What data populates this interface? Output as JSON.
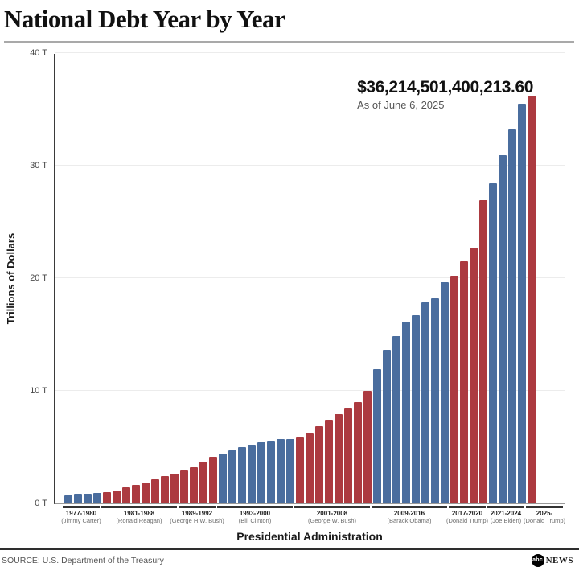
{
  "header": {
    "title": "National Debt Year by Year"
  },
  "annotation": {
    "headline": "$36,214,501,400,213.60",
    "subtext": "As of June 6, 2025"
  },
  "chart_data": {
    "type": "bar",
    "title": "National Debt Year by Year",
    "ylabel": "Trillions of Dollars",
    "xlabel": "Presidential Administration",
    "ylim": [
      0,
      40
    ],
    "yticks": [
      0,
      10,
      20,
      30,
      40
    ],
    "ytick_labels": [
      "0 T",
      "10 T",
      "20 T",
      "30 T",
      "40 T"
    ],
    "grid": true,
    "unit": "trillions of US dollars",
    "annotation": {
      "headline": "$36,214,501,400,213.60",
      "subtext": "As of June 6, 2025"
    },
    "colors": {
      "democrat": "#4a6d9e",
      "republican": "#ac3a40"
    },
    "groups": [
      {
        "term": "1977-1980",
        "president": "(Jimmy Carter)",
        "party": "democrat",
        "years": [
          1977,
          1978,
          1979,
          1980
        ],
        "values": [
          0.7,
          0.8,
          0.8,
          0.9
        ]
      },
      {
        "term": "1981-1988",
        "president": "(Ronald Reagan)",
        "party": "republican",
        "years": [
          1981,
          1982,
          1983,
          1984,
          1985,
          1986,
          1987,
          1988
        ],
        "values": [
          1.0,
          1.1,
          1.4,
          1.6,
          1.8,
          2.1,
          2.4,
          2.6
        ]
      },
      {
        "term": "1989-1992",
        "president": "(George H.W. Bush)",
        "party": "republican",
        "years": [
          1989,
          1990,
          1991,
          1992
        ],
        "values": [
          2.9,
          3.2,
          3.7,
          4.1
        ]
      },
      {
        "term": "1993-2000",
        "president": "(Bill Clinton)",
        "party": "democrat",
        "years": [
          1993,
          1994,
          1995,
          1996,
          1997,
          1998,
          1999,
          2000
        ],
        "values": [
          4.4,
          4.7,
          5.0,
          5.2,
          5.4,
          5.5,
          5.7,
          5.7
        ]
      },
      {
        "term": "2001-2008",
        "president": "(George W. Bush)",
        "party": "republican",
        "years": [
          2001,
          2002,
          2003,
          2004,
          2005,
          2006,
          2007,
          2008
        ],
        "values": [
          5.8,
          6.2,
          6.8,
          7.4,
          7.9,
          8.5,
          9.0,
          10.0
        ]
      },
      {
        "term": "2009-2016",
        "president": "(Barack Obama)",
        "party": "democrat",
        "years": [
          2009,
          2010,
          2011,
          2012,
          2013,
          2014,
          2015,
          2016
        ],
        "values": [
          11.9,
          13.6,
          14.8,
          16.1,
          16.7,
          17.8,
          18.2,
          19.6
        ]
      },
      {
        "term": "2017-2020",
        "president": "(Donald Trump)",
        "party": "republican",
        "years": [
          2017,
          2018,
          2019,
          2020
        ],
        "values": [
          20.2,
          21.5,
          22.7,
          26.9
        ]
      },
      {
        "term": "2021-2024",
        "president": "(Joe Biden)",
        "party": "democrat",
        "years": [
          2021,
          2022,
          2023,
          2024
        ],
        "values": [
          28.4,
          30.9,
          33.2,
          35.5
        ]
      },
      {
        "term": "2025-",
        "president": "(Donald Trump)",
        "party": "republican",
        "years": [
          2025
        ],
        "values": [
          36.2
        ]
      }
    ]
  },
  "footer": {
    "source": "SOURCE: U.S. Department of the Treasury",
    "logo": {
      "circle_text": "abc",
      "wordmark": "NEWS"
    }
  }
}
